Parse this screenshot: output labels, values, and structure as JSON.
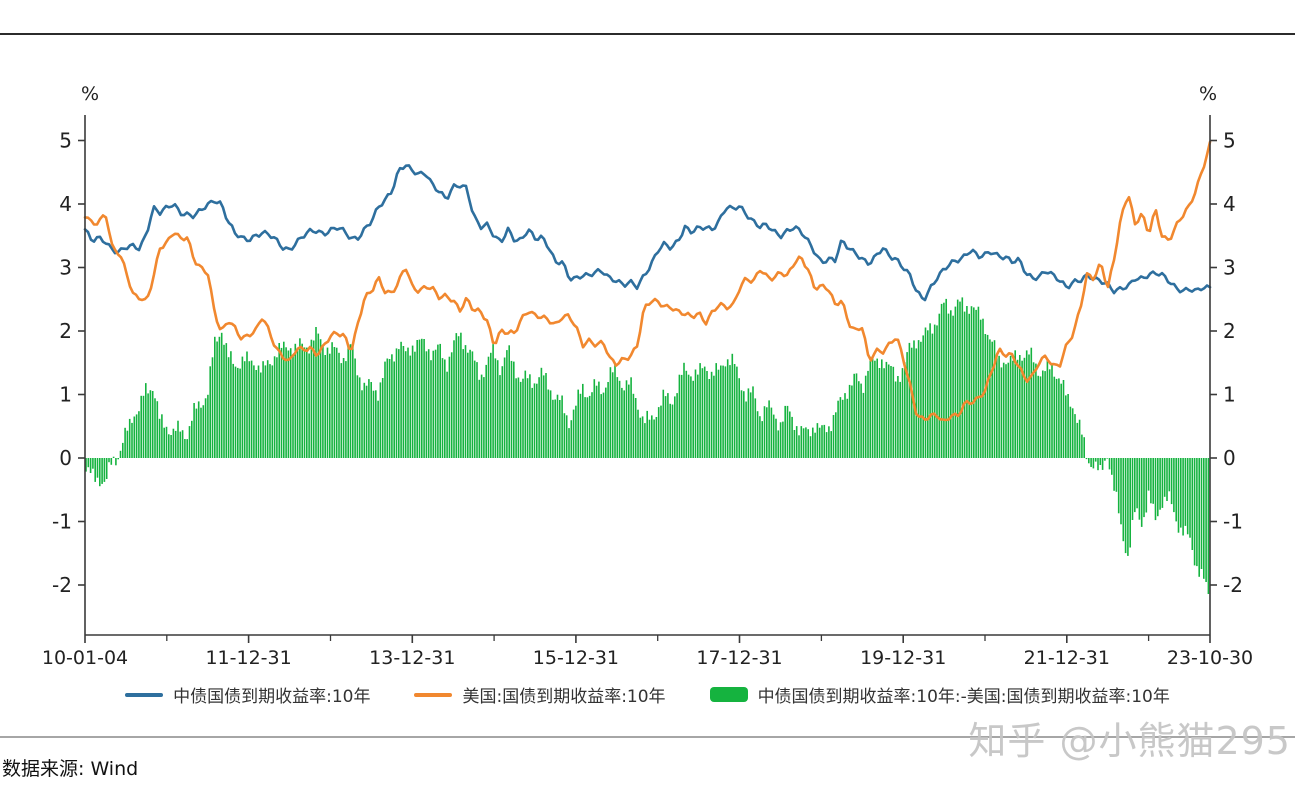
{
  "page": {
    "background": "#ffffff"
  },
  "footer": {
    "source_label": "数据来源: Wind"
  },
  "watermark": {
    "text": "知乎 @小熊猫295"
  },
  "chart_data": {
    "type": "line+bar",
    "title": "",
    "y_unit": "%",
    "ylim": [
      -2.8,
      5.4
    ],
    "y_ticks": [
      -2,
      -1,
      0,
      1,
      2,
      3,
      4,
      5
    ],
    "x_frequency": "monthly",
    "x_start": "2010-01",
    "x_end": "2023-10",
    "x_tick_positions": [
      0,
      24,
      48,
      72,
      96,
      120,
      144,
      165
    ],
    "x_tick_labels": [
      "10-01-04",
      "11-12-31",
      "13-12-31",
      "15-12-31",
      "17-12-31",
      "19-12-31",
      "21-12-31",
      "23-10-30"
    ],
    "x_minor_tick_positions": [
      12,
      36,
      60,
      84,
      108,
      132,
      156
    ],
    "legend_position": "bottom",
    "grid": false,
    "series": [
      {
        "name": "中债国债到期收益率:10年",
        "type": "line",
        "color": "#2e6f9e",
        "values": [
          3.6,
          3.4,
          3.45,
          3.42,
          3.3,
          3.25,
          3.3,
          3.32,
          3.3,
          3.55,
          3.95,
          3.85,
          3.92,
          4.0,
          3.88,
          3.85,
          3.8,
          3.88,
          3.98,
          4.08,
          4.02,
          3.72,
          3.52,
          3.45,
          3.45,
          3.52,
          3.55,
          3.5,
          3.42,
          3.32,
          3.3,
          3.4,
          3.48,
          3.55,
          3.58,
          3.55,
          3.6,
          3.62,
          3.55,
          3.45,
          3.48,
          3.62,
          3.72,
          3.92,
          4.05,
          4.22,
          4.55,
          4.62,
          4.5,
          4.45,
          4.5,
          4.32,
          4.2,
          4.05,
          4.25,
          4.3,
          4.28,
          3.82,
          3.62,
          3.65,
          3.5,
          3.42,
          3.62,
          3.42,
          3.4,
          3.6,
          3.48,
          3.5,
          3.32,
          3.05,
          3.08,
          2.85,
          2.85,
          2.88,
          2.85,
          2.92,
          2.95,
          2.85,
          2.8,
          2.7,
          2.75,
          2.7,
          2.9,
          3.05,
          3.25,
          3.35,
          3.3,
          3.45,
          3.65,
          3.55,
          3.6,
          3.62,
          3.62,
          3.75,
          3.95,
          3.9,
          3.95,
          3.85,
          3.75,
          3.65,
          3.65,
          3.55,
          3.5,
          3.6,
          3.65,
          3.55,
          3.4,
          3.25,
          3.1,
          3.15,
          3.1,
          3.4,
          3.3,
          3.25,
          3.15,
          3.05,
          3.15,
          3.3,
          3.2,
          3.15,
          3.0,
          2.85,
          2.6,
          2.5,
          2.7,
          2.85,
          2.95,
          3.05,
          3.12,
          3.2,
          3.3,
          3.15,
          3.18,
          3.25,
          3.2,
          3.18,
          3.08,
          3.1,
          2.9,
          2.85,
          2.88,
          2.95,
          2.85,
          2.78,
          2.7,
          2.8,
          2.8,
          2.85,
          2.8,
          2.8,
          2.76,
          2.63,
          2.65,
          2.68,
          2.83,
          2.85,
          2.9,
          2.9,
          2.86,
          2.78,
          2.7,
          2.65,
          2.65,
          2.6,
          2.68,
          2.7
        ]
      },
      {
        "name": "美国:国债到期收益率:10年",
        "type": "line",
        "color": "#f1882f",
        "values": [
          3.8,
          3.7,
          3.73,
          3.88,
          3.3,
          3.2,
          2.95,
          2.6,
          2.55,
          2.45,
          2.8,
          3.3,
          3.4,
          3.6,
          3.45,
          3.45,
          3.1,
          3.0,
          2.95,
          2.3,
          1.95,
          2.15,
          2.05,
          1.9,
          1.95,
          1.98,
          2.2,
          2.0,
          1.75,
          1.62,
          1.5,
          1.7,
          1.7,
          1.75,
          1.65,
          1.75,
          1.9,
          1.95,
          1.95,
          1.7,
          2.1,
          2.5,
          2.6,
          2.85,
          2.65,
          2.6,
          2.75,
          3.0,
          2.7,
          2.65,
          2.72,
          2.65,
          2.5,
          2.55,
          2.5,
          2.35,
          2.5,
          2.3,
          2.3,
          2.17,
          1.8,
          2.0,
          1.95,
          1.95,
          2.2,
          2.35,
          2.25,
          2.2,
          2.15,
          2.1,
          2.25,
          2.25,
          2.05,
          1.75,
          1.85,
          1.8,
          1.85,
          1.55,
          1.45,
          1.55,
          1.62,
          1.8,
          2.35,
          2.45,
          2.45,
          2.4,
          2.4,
          2.3,
          2.25,
          2.2,
          2.3,
          2.15,
          2.3,
          2.4,
          2.35,
          2.4,
          2.7,
          2.85,
          2.75,
          2.95,
          2.85,
          2.85,
          2.95,
          2.85,
          3.05,
          3.15,
          3.0,
          2.7,
          2.7,
          2.65,
          2.4,
          2.5,
          2.15,
          2.0,
          2.05,
          1.5,
          1.7,
          1.7,
          1.8,
          1.9,
          1.55,
          1.15,
          0.7,
          0.62,
          0.65,
          0.65,
          0.55,
          0.7,
          0.68,
          0.85,
          0.85,
          0.92,
          1.08,
          1.4,
          1.7,
          1.6,
          1.6,
          1.45,
          1.25,
          1.3,
          1.5,
          1.58,
          1.45,
          1.5,
          1.8,
          1.95,
          2.35,
          2.9,
          2.85,
          3.1,
          2.65,
          3.15,
          3.8,
          4.2,
          3.7,
          3.85,
          3.5,
          3.9,
          3.5,
          3.45,
          3.65,
          3.8,
          3.95,
          4.25,
          4.6,
          4.95
        ]
      },
      {
        "name": "中债国债到期收益率:10年:-美国:国债到期收益率:10年",
        "type": "bar",
        "color": "#15b33f",
        "derived_from": "series[0] - series[1]"
      }
    ]
  }
}
